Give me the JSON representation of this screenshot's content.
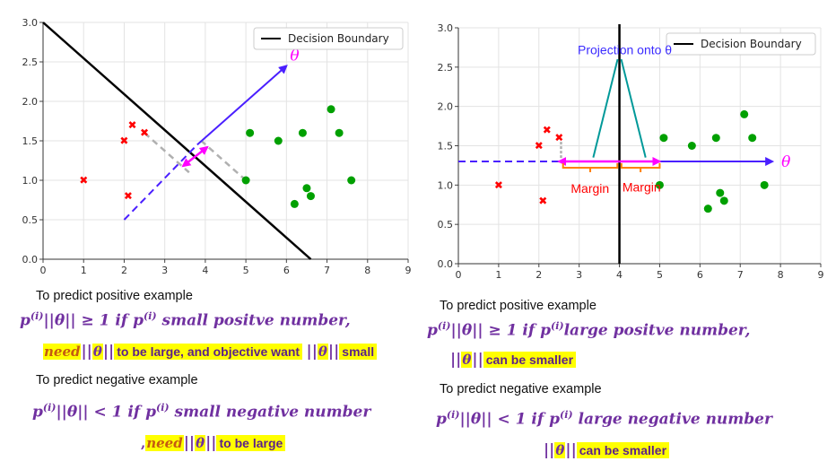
{
  "chart_data": [
    {
      "type": "scatter",
      "xlim": [
        0,
        9
      ],
      "ylim": [
        0,
        3.0
      ],
      "x_ticks": [
        "0",
        "1",
        "2",
        "3",
        "4",
        "5",
        "6",
        "7",
        "8",
        "9"
      ],
      "y_ticks": [
        "0.0",
        "0.5",
        "1.0",
        "1.5",
        "2.0",
        "2.5",
        "3.0"
      ],
      "grid": true,
      "legend_position": "top-right",
      "legend": [
        "Decision Boundary"
      ],
      "negative_points": [
        [
          1,
          1.0
        ],
        [
          2,
          1.5
        ],
        [
          2.2,
          1.7
        ],
        [
          2.5,
          1.6
        ],
        [
          2.1,
          0.8
        ]
      ],
      "positive_points": [
        [
          5,
          1.0
        ],
        [
          5.1,
          1.6
        ],
        [
          5.8,
          1.5
        ],
        [
          6.4,
          1.6
        ],
        [
          6.2,
          0.7
        ],
        [
          6.5,
          0.9
        ],
        [
          6.6,
          0.8
        ],
        [
          7.1,
          1.9
        ],
        [
          7.3,
          1.6
        ],
        [
          7.6,
          1.0
        ]
      ],
      "decision_boundary": [
        [
          0,
          3.0
        ],
        [
          6.6,
          0.0
        ]
      ],
      "theta_arrow": [
        [
          3.8,
          1.45
        ],
        [
          6.0,
          2.45
        ]
      ],
      "theta_label": "θ",
      "theta_dashed": [
        [
          2.0,
          0.5
        ],
        [
          3.8,
          1.45
        ]
      ],
      "projection_dashes": [
        [
          [
            2.5,
            1.6
          ],
          [
            3.6,
            1.1
          ]
        ],
        [
          [
            5.0,
            1.0
          ],
          [
            3.9,
            1.5
          ]
        ]
      ],
      "margin_arrow": [
        [
          3.45,
          1.18
        ],
        [
          4.05,
          1.42
        ]
      ]
    },
    {
      "type": "scatter",
      "xlim": [
        0,
        9
      ],
      "ylim": [
        0,
        3.0
      ],
      "x_ticks": [
        "0",
        "1",
        "2",
        "3",
        "4",
        "5",
        "6",
        "7",
        "8",
        "9"
      ],
      "y_ticks": [
        "0.0",
        "0.5",
        "1.0",
        "1.5",
        "2.0",
        "2.5",
        "3.0"
      ],
      "grid": true,
      "legend_position": "top-right",
      "legend": [
        "Decision Boundary"
      ],
      "negative_points": [
        [
          1,
          1.0
        ],
        [
          2,
          1.5
        ],
        [
          2.2,
          1.7
        ],
        [
          2.5,
          1.6
        ],
        [
          2.1,
          0.8
        ]
      ],
      "positive_points": [
        [
          5,
          1.0
        ],
        [
          5.1,
          1.6
        ],
        [
          5.8,
          1.5
        ],
        [
          6.4,
          1.6
        ],
        [
          6.2,
          0.7
        ],
        [
          6.5,
          0.9
        ],
        [
          6.6,
          0.8
        ],
        [
          7.1,
          1.9
        ],
        [
          7.3,
          1.6
        ],
        [
          7.6,
          1.0
        ]
      ],
      "decision_boundary_x": 4,
      "theta_dashed": [
        [
          0,
          1.3
        ],
        [
          2.5,
          1.3
        ]
      ],
      "theta_arrow": [
        [
          5.0,
          1.3
        ],
        [
          7.8,
          1.3
        ]
      ],
      "theta_label": "θ",
      "margin_arrow": [
        [
          2.5,
          1.3
        ],
        [
          5.0,
          1.3
        ]
      ],
      "projection_label": "Projection onto  θ",
      "margin_labels": [
        "Margin",
        "Margin"
      ]
    }
  ],
  "left_text": {
    "pos_title": "To predict positive example",
    "neg_title": "To predict negative example",
    "pos_rule": "small positve number,",
    "neg_rule": "small negative number",
    "need1_hl": "to be large, and objective want",
    "need1_tail": "small",
    "need2_hl": "to be large",
    "need_word": "need"
  },
  "right_text": {
    "pos_title": "To predict positive example",
    "neg_title": "To predict negative example",
    "pos_rule": "large positve number,",
    "neg_rule": "large negative number",
    "smaller1": "can be smaller",
    "smaller2": "can be smaller"
  },
  "colors": {
    "negative": "#ff0000",
    "positive": "#00a000",
    "boundary": "#000000",
    "theta": "#4a1fff",
    "margin": "#ff00ff",
    "projection_line": "#009999",
    "projection_label": "#3b2bff",
    "bracket": "#ff8000",
    "margin_label": "#ff0000",
    "highlight": "#ffff00",
    "math": "#7030a0"
  }
}
